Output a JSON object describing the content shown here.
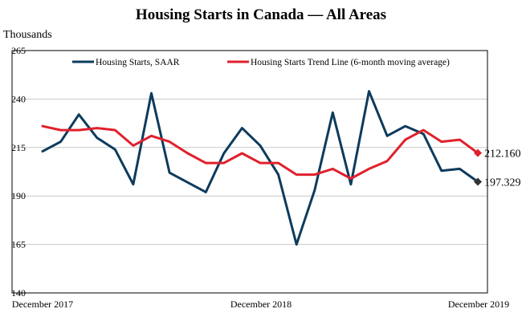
{
  "chart_data": {
    "type": "line",
    "title": "Housing Starts in Canada — All Areas",
    "ylabel": "Thousands",
    "xlabel": "",
    "ylim": [
      140,
      265
    ],
    "yticks": [
      140,
      165,
      190,
      215,
      240,
      265
    ],
    "x": [
      "2017-12",
      "2018-01",
      "2018-02",
      "2018-03",
      "2018-04",
      "2018-05",
      "2018-06",
      "2018-07",
      "2018-08",
      "2018-09",
      "2018-10",
      "2018-11",
      "2018-12",
      "2019-01",
      "2019-02",
      "2019-03",
      "2019-04",
      "2019-05",
      "2019-06",
      "2019-07",
      "2019-08",
      "2019-09",
      "2019-10",
      "2019-11",
      "2019-12"
    ],
    "x_tick_labels": [
      "December 2017",
      "December 2018",
      "December 2019"
    ],
    "grid": {
      "horizontal": true,
      "vertical": false
    },
    "legend": "top",
    "colors": {
      "saar": "#0d3b5c",
      "trend": "#e0202c"
    },
    "series": [
      {
        "name": "Housing Starts, SAAR",
        "color": "#0d3b5c",
        "values": [
          213,
          218,
          232,
          220,
          214,
          196,
          243,
          202,
          197,
          192,
          212,
          225,
          216,
          201,
          165,
          193,
          233,
          196,
          244,
          221,
          226,
          222,
          203,
          204,
          197.329
        ]
      },
      {
        "name": "Housing Starts Trend Line (6-month moving average)",
        "color": "#e0202c",
        "values": [
          226,
          224,
          224,
          225,
          224,
          216,
          221,
          218,
          212,
          207,
          207,
          212,
          207,
          207,
          201,
          201,
          204,
          199,
          204,
          208,
          219,
          224,
          218,
          219,
          212.16
        ]
      }
    ],
    "end_labels": [
      "197.329",
      "212.160"
    ]
  }
}
